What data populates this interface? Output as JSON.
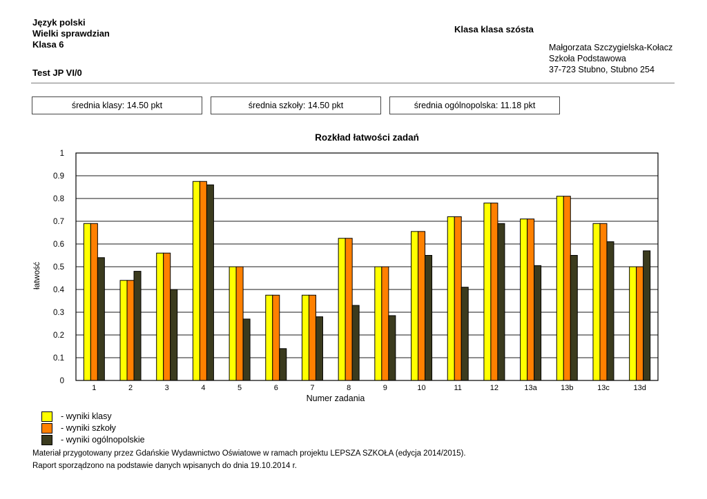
{
  "header": {
    "left_lines": [
      "Język polski",
      "Wielki sprawdzian",
      "Klasa 6"
    ],
    "test_label": "Test JP VI/0",
    "class_title": "Klasa klasa szósta",
    "right_lines": [
      "Małgorzata Szczygielska-Kołacz",
      "Szkoła Podstawowa",
      "37-723 Stubno, Stubno 254"
    ]
  },
  "summary_boxes": [
    {
      "label": "średnia klasy: 14.50 pkt"
    },
    {
      "label": "średnia szkoły: 14.50 pkt"
    },
    {
      "label": "średnia ogólnopolska: 11.18 pkt"
    }
  ],
  "chart_data": {
    "type": "bar",
    "title": "Rozkład łatwości zadań",
    "xlabel": "Numer zadania",
    "ylabel": "łatwość",
    "ylim": [
      0,
      1
    ],
    "ytick_step": 0.1,
    "ytick_labels": [
      "0",
      "0.1",
      "0.2",
      "0.3",
      "0.4",
      "0.5",
      "0.6",
      "0.7",
      "0.8",
      "0.9",
      "1"
    ],
    "grid": true,
    "legend_position": "bottom-left",
    "categories": [
      "1",
      "2",
      "3",
      "4",
      "5",
      "6",
      "7",
      "8",
      "9",
      "10",
      "11",
      "12",
      "13a",
      "13b",
      "13c",
      "13d"
    ],
    "series": [
      {
        "name": "- wyniki klasy",
        "color": "#FFFF00",
        "values": [
          0.69,
          0.44,
          0.56,
          0.875,
          0.5,
          0.375,
          0.375,
          0.625,
          0.5,
          0.655,
          0.72,
          0.78,
          0.71,
          0.81,
          0.69,
          0.5
        ]
      },
      {
        "name": "- wyniki szkoły",
        "color": "#FF8000",
        "values": [
          0.69,
          0.44,
          0.56,
          0.875,
          0.5,
          0.375,
          0.375,
          0.625,
          0.5,
          0.655,
          0.72,
          0.78,
          0.71,
          0.81,
          0.69,
          0.5
        ]
      },
      {
        "name": "- wyniki ogólnopolskie",
        "color": "#3B3B1E",
        "values": [
          0.54,
          0.48,
          0.4,
          0.86,
          0.27,
          0.14,
          0.28,
          0.33,
          0.285,
          0.55,
          0.41,
          0.69,
          0.505,
          0.55,
          0.61,
          0.57
        ]
      }
    ],
    "colors": {
      "grid": "#1a1a1a",
      "bar_outline": "#000000"
    }
  },
  "footer": {
    "line1": "Materiał przygotowany przez Gdańskie Wydawnictwo Oświatowe w ramach projektu LEPSZA SZKOŁA (edycja 2014/2015).",
    "line2": "Raport sporządzono na podstawie danych wpisanych do dnia 19.10.2014 r."
  }
}
